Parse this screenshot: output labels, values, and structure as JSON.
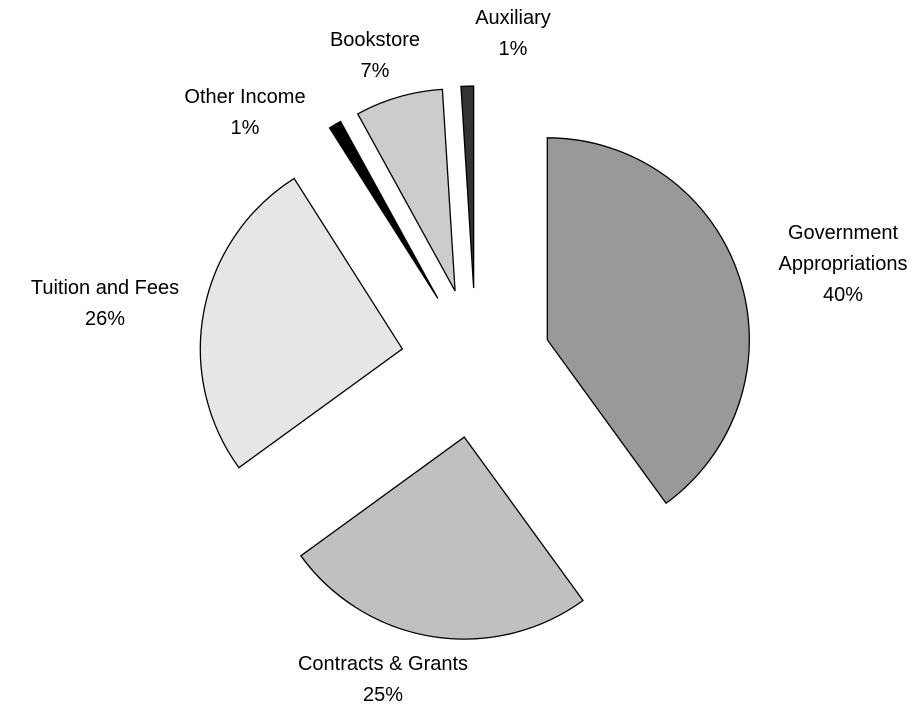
{
  "chart_data": {
    "type": "pie",
    "categories": [
      "Government Appropriations",
      "Contracts & Grants",
      "Tuition and Fees",
      "Other Income",
      "Bookstore",
      "Auxiliary"
    ],
    "values": [
      40,
      25,
      26,
      1,
      7,
      1
    ],
    "value_labels": [
      "40%",
      "25%",
      "26%",
      "1%",
      "7%",
      "1%"
    ],
    "colors": [
      "#999999",
      "#c0c0c0",
      "#e6e6e6",
      "#000000",
      "#cccccc",
      "#333333"
    ],
    "exploded": true
  }
}
